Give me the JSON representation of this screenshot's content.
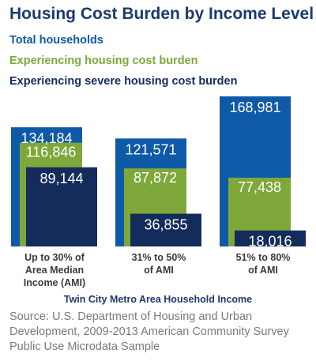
{
  "chart_data": {
    "type": "bar",
    "title": "Housing Cost Burden by Income Level",
    "categories": [
      [
        "Up to 30% of",
        "Area Median",
        "Income (AMI)"
      ],
      [
        "31% to 50%",
        "of AMI"
      ],
      [
        "51% to 80%",
        "of AMI"
      ]
    ],
    "series": [
      {
        "name": "Total households",
        "color": "#0e5aa7",
        "values": [
          134184,
          121571,
          168981
        ],
        "labels": [
          "134,184",
          "121,571",
          "168,981"
        ]
      },
      {
        "name": "Experiencing housing cost burden",
        "color": "#7ea83a",
        "values": [
          116846,
          87872,
          77438
        ],
        "labels": [
          "116,846",
          "87,872",
          "77,438"
        ]
      },
      {
        "name": "Experiencing severe housing cost burden",
        "color": "#142c5c",
        "values": [
          89144,
          36855,
          18016
        ],
        "labels": [
          "89,144",
          "36,855",
          "18,016"
        ]
      }
    ],
    "xlabel": "Twin City Metro Area Household Income",
    "ylabel": "",
    "ylim": [
      0,
      175000
    ],
    "grid": false,
    "legend": "top-left",
    "layout": "overlapping-bars"
  },
  "source": "Source:  U.S. Department of Housing and Urban Development, 2009-2013 American Community Survey Public Use Microdata Sample"
}
